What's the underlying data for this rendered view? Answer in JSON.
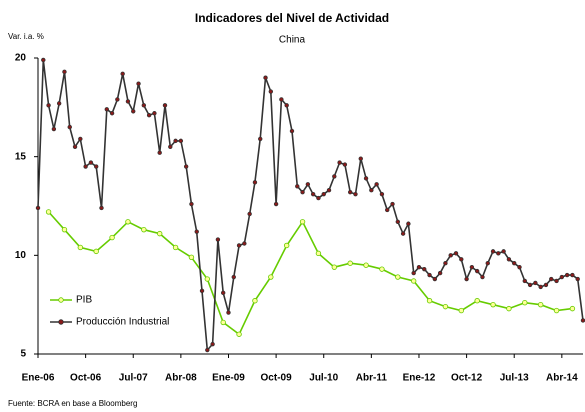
{
  "chart_data": {
    "type": "line",
    "title": "Indicadores del Nivel de Actividad",
    "subtitle": "China",
    "y_label": "Var. i.a. %",
    "source": "Fuente: BCRA en base a Bloomberg",
    "x": [
      "Ene-06",
      "Feb-06",
      "Mar-06",
      "Abr-06",
      "May-06",
      "Jun-06",
      "Jul-06",
      "Ago-06",
      "Sep-06",
      "Oct-06",
      "Nov-06",
      "Dic-06",
      "Ene-07",
      "Feb-07",
      "Mar-07",
      "Abr-07",
      "May-07",
      "Jun-07",
      "Jul-07",
      "Ago-07",
      "Sep-07",
      "Oct-07",
      "Nov-07",
      "Dic-07",
      "Ene-08",
      "Feb-08",
      "Mar-08",
      "Abr-08",
      "May-08",
      "Jun-08",
      "Jul-08",
      "Ago-08",
      "Sep-08",
      "Oct-08",
      "Nov-08",
      "Dic-08",
      "Ene-09",
      "Feb-09",
      "Mar-09",
      "Abr-09",
      "May-09",
      "Jun-09",
      "Jul-09",
      "Ago-09",
      "Sep-09",
      "Oct-09",
      "Nov-09",
      "Dic-09",
      "Ene-10",
      "Feb-10",
      "Mar-10",
      "Abr-10",
      "May-10",
      "Jun-10",
      "Jul-10",
      "Ago-10",
      "Sep-10",
      "Oct-10",
      "Nov-10",
      "Dic-10",
      "Ene-11",
      "Feb-11",
      "Mar-11",
      "Abr-11",
      "May-11",
      "Jun-11",
      "Jul-11",
      "Ago-11",
      "Sep-11",
      "Oct-11",
      "Nov-11",
      "Dic-11",
      "Ene-12",
      "Feb-12",
      "Mar-12",
      "Abr-12",
      "May-12",
      "Jun-12",
      "Jul-12",
      "Ago-12",
      "Sep-12",
      "Oct-12",
      "Nov-12",
      "Dic-12",
      "Ene-13",
      "Feb-13",
      "Mar-13",
      "Abr-13",
      "May-13",
      "Jun-13",
      "Jul-13",
      "Ago-13",
      "Sep-13",
      "Oct-13",
      "Nov-13",
      "Dic-13",
      "Ene-14",
      "Feb-14",
      "Mar-14",
      "Abr-14",
      "May-14",
      "Jun-14",
      "Jul-14",
      "Ago-14"
    ],
    "xlim": [
      "Ene-06",
      "Ago-14"
    ],
    "xticks": [
      "Ene-06",
      "Oct-06",
      "Jul-07",
      "Abr-08",
      "Ene-09",
      "Oct-09",
      "Jul-10",
      "Abr-11",
      "Ene-12",
      "Oct-12",
      "Jul-13",
      "Abr-14"
    ],
    "ylim": [
      5,
      20
    ],
    "yticks": [
      5,
      10,
      15,
      20
    ],
    "grid": false,
    "legend": "lower left",
    "series": [
      {
        "name": "PIB",
        "color": "#66cc00",
        "marker_fill": "#ffff99",
        "x": [
          "Mar-06",
          "Jun-06",
          "Sep-06",
          "Dic-06",
          "Mar-07",
          "Jun-07",
          "Sep-07",
          "Dic-07",
          "Mar-08",
          "Jun-08",
          "Sep-08",
          "Dic-08",
          "Mar-09",
          "Jun-09",
          "Sep-09",
          "Dic-09",
          "Mar-10",
          "Jun-10",
          "Sep-10",
          "Dic-10",
          "Mar-11",
          "Jun-11",
          "Sep-11",
          "Dic-11",
          "Mar-12",
          "Jun-12",
          "Sep-12",
          "Dic-12",
          "Mar-13",
          "Jun-13",
          "Sep-13",
          "Dic-13",
          "Mar-14",
          "Jun-14"
        ],
        "values": [
          12.2,
          11.3,
          10.4,
          10.2,
          10.9,
          11.7,
          11.3,
          11.1,
          10.4,
          9.9,
          8.8,
          6.6,
          6.0,
          7.7,
          8.9,
          10.5,
          11.7,
          10.1,
          9.4,
          9.6,
          9.5,
          9.3,
          8.9,
          8.7,
          7.7,
          7.4,
          7.2,
          7.7,
          7.5,
          7.3,
          7.6,
          7.5,
          7.2,
          7.3
        ]
      },
      {
        "name": "Producción Industrial",
        "color": "#333333",
        "marker_fill": "#8b1a1a",
        "values": [
          12.4,
          19.9,
          17.6,
          16.4,
          17.7,
          19.3,
          16.5,
          15.5,
          15.9,
          14.5,
          14.7,
          14.5,
          12.4,
          17.4,
          17.2,
          17.9,
          19.2,
          17.8,
          17.3,
          18.7,
          17.6,
          17.1,
          17.2,
          15.2,
          17.6,
          15.5,
          15.8,
          15.8,
          14.5,
          12.6,
          11.2,
          8.2,
          5.2,
          5.5,
          10.8,
          8.1,
          7.1,
          8.9,
          10.5,
          10.6,
          12.1,
          13.7,
          15.9,
          19.0,
          18.3,
          12.6,
          17.9,
          17.6,
          16.3,
          13.5,
          13.2,
          13.6,
          13.1,
          12.9,
          13.1,
          13.3,
          14.0,
          14.7,
          14.6,
          13.2,
          13.1,
          14.9,
          13.9,
          13.3,
          13.6,
          13.1,
          12.3,
          12.6,
          11.7,
          11.1,
          11.6,
          9.1,
          9.4,
          9.3,
          9.0,
          8.8,
          9.1,
          9.6,
          10.0,
          10.1,
          9.8,
          8.8,
          9.4,
          9.2,
          8.9,
          9.6,
          10.2,
          10.1,
          10.2,
          9.8,
          9.6,
          9.4,
          8.7,
          8.5,
          8.6,
          8.4,
          8.5,
          8.8,
          8.7,
          8.9,
          9.0,
          9.0,
          8.8,
          6.7
        ]
      }
    ]
  }
}
